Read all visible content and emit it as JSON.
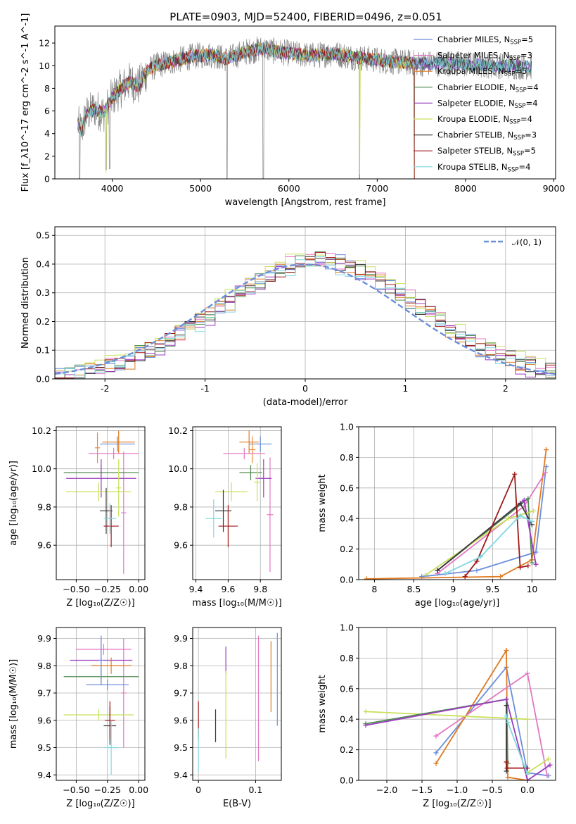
{
  "title": "PLATE=0903, MJD=52400, FIBERID=0496, z=0.051",
  "colors": [
    "#6a8fdb",
    "#ec8a38",
    "#e07a20",
    "#4f8a4f",
    "#9a3cbf",
    "#c8e05a",
    "#3a3a3a",
    "#a01818",
    "#7fd8e0"
  ],
  "chart_data": [
    {
      "type": "line",
      "name": "spectrum",
      "xlabel": "wavelength [Angstrom, rest frame]",
      "ylabel": "Flux [f_λ10^-17 erg cm^-2 s^-1 A^-1]",
      "xlim": [
        3350,
        9020
      ],
      "ylim": [
        0,
        13.5
      ],
      "xticks": [
        4000,
        5000,
        6000,
        7000,
        8000,
        9000
      ],
      "yticks": [
        0,
        2,
        4,
        6,
        8,
        10,
        12
      ],
      "legend_position": "right",
      "legend": [
        {
          "label": "Chabrier MILES, N",
          "sub": "SSP",
          "suffix": "=5",
          "color": "#6a8fdb"
        },
        {
          "label": "Salpeter MILES, N",
          "sub": "SSP",
          "suffix": "=3",
          "color": "#e377c2"
        },
        {
          "label": "Kroupa MILES, N",
          "sub": "SSP",
          "suffix": "=5",
          "color": "#e07a20"
        },
        {
          "label": "Chabrier ELODIE, N",
          "sub": "SSP",
          "suffix": "=4",
          "color": "#4f8a4f"
        },
        {
          "label": "Salpeter ELODIE, N",
          "sub": "SSP",
          "suffix": "=4",
          "color": "#9a3cbf"
        },
        {
          "label": "Kroupa ELODIE, N",
          "sub": "SSP",
          "suffix": "=4",
          "color": "#c8e05a"
        },
        {
          "label": "Chabrier STELIB, N",
          "sub": "SSP",
          "suffix": "=3",
          "color": "#3a3a3a"
        },
        {
          "label": "Salpeter STELIB, N",
          "sub": "SSP",
          "suffix": "=5",
          "color": "#a01818"
        },
        {
          "label": "Kroupa STELIB, N",
          "sub": "SSP",
          "suffix": "=4",
          "color": "#7fd8e0"
        }
      ],
      "continuum_points": [
        [
          3600,
          5.0
        ],
        [
          3650,
          4.2
        ],
        [
          3700,
          5.6
        ],
        [
          3800,
          6.2
        ],
        [
          3900,
          5.8
        ],
        [
          4000,
          7.2
        ],
        [
          4100,
          8.0
        ],
        [
          4200,
          8.6
        ],
        [
          4300,
          8.2
        ],
        [
          4400,
          9.6
        ],
        [
          4500,
          10.0
        ],
        [
          4700,
          10.4
        ],
        [
          4900,
          10.8
        ],
        [
          5100,
          11.0
        ],
        [
          5300,
          10.6
        ],
        [
          5500,
          11.2
        ],
        [
          5700,
          11.5
        ],
        [
          5900,
          11.2
        ],
        [
          6100,
          11.0
        ],
        [
          6300,
          10.9
        ],
        [
          6500,
          11.1
        ],
        [
          6700,
          10.8
        ],
        [
          6900,
          10.6
        ],
        [
          7100,
          10.4
        ],
        [
          7300,
          10.3
        ],
        [
          7500,
          10.2
        ],
        [
          7800,
          10.2
        ],
        [
          8100,
          10.1
        ],
        [
          8400,
          10.0
        ],
        [
          8750,
          9.9
        ]
      ],
      "absorption_lines": [
        [
          3630,
          0.0
        ],
        [
          3930,
          0.8
        ],
        [
          3970,
          0.9
        ],
        [
          5300,
          0.0
        ],
        [
          5710,
          0.0
        ],
        [
          6800,
          0.0
        ],
        [
          7420,
          0.0
        ]
      ]
    },
    {
      "type": "histogram",
      "name": "residuals",
      "xlabel": "(data-model)/error",
      "ylabel": "Normed distribution",
      "xlim": [
        -2.5,
        2.5
      ],
      "ylim": [
        0,
        0.53
      ],
      "xticks": [
        -2,
        -1,
        0,
        1,
        2
      ],
      "yticks": [
        0.0,
        0.1,
        0.2,
        0.3,
        0.4,
        0.5
      ],
      "legend": [
        {
          "label": "𝒩(0, 1)",
          "color": "#6a8fdb",
          "dashed": true
        }
      ],
      "bin_width": 0.1,
      "series": [
        {
          "color": "#6a8fdb",
          "offset": 0.0
        },
        {
          "color": "#e377c2",
          "offset": 0.03
        },
        {
          "color": "#e07a20",
          "offset": -0.02
        },
        {
          "color": "#4f8a4f",
          "offset": 0.02
        },
        {
          "color": "#9a3cbf",
          "offset": -0.03
        },
        {
          "color": "#c8e05a",
          "offset": 0.04
        },
        {
          "color": "#3a3a3a",
          "offset": -0.01
        },
        {
          "color": "#a01818",
          "offset": 0.01
        },
        {
          "color": "#7fd8e0",
          "offset": -0.04
        }
      ]
    },
    {
      "type": "scatter",
      "name": "age-vs-Z",
      "xlabel": "Z [log₁₀(Z/Z☉)]",
      "ylabel": "age  [log₁₀(age/yr)]",
      "xlim": [
        -0.66,
        0.05
      ],
      "ylim": [
        9.42,
        10.22
      ],
      "xticks": [
        -0.5,
        -0.25,
        0.0
      ],
      "xticklabels": [
        "−0.50",
        "−0.25",
        "0.00"
      ],
      "yticks": [
        9.6,
        9.8,
        10.0,
        10.2
      ],
      "points": [
        {
          "x": -0.17,
          "y": 10.13,
          "dx": 0.14,
          "dy": 0.04,
          "color": "#6a8fdb"
        },
        {
          "x": -0.16,
          "y": 10.14,
          "dx": 0.13,
          "dy": 0.06,
          "color": "#e07a20"
        },
        {
          "x": -0.33,
          "y": 10.11,
          "dx": 0.02,
          "dy": 0.08,
          "color": "#ec8a38"
        },
        {
          "x": -0.2,
          "y": 10.08,
          "dx": 0.2,
          "dy": 0.03,
          "color": "#e377c2"
        },
        {
          "x": -0.12,
          "y": 9.77,
          "dx": 0.02,
          "dy": 0.32,
          "color": "#e377c2"
        },
        {
          "x": -0.3,
          "y": 9.98,
          "dx": 0.3,
          "dy": 0.04,
          "color": "#4f8a4f"
        },
        {
          "x": -0.3,
          "y": 9.95,
          "dx": 0.28,
          "dy": 0.1,
          "color": "#9a3cbf"
        },
        {
          "x": -0.32,
          "y": 9.88,
          "dx": 0.26,
          "dy": 0.05,
          "color": "#c8e05a"
        },
        {
          "x": -0.16,
          "y": 9.9,
          "dx": 0.02,
          "dy": 0.15,
          "color": "#c8e05a"
        },
        {
          "x": -0.26,
          "y": 9.78,
          "dx": 0.05,
          "dy": 0.12,
          "color": "#3a3a3a"
        },
        {
          "x": -0.22,
          "y": 9.7,
          "dx": 0.06,
          "dy": 0.11,
          "color": "#a01818"
        },
        {
          "x": -0.23,
          "y": 9.74,
          "dx": 0.05,
          "dy": 0.08,
          "color": "#7fd8e0"
        }
      ]
    },
    {
      "type": "scatter",
      "name": "age-vs-mass",
      "xlabel": "mass [log₁₀(M/M☉)]",
      "ylabel": "",
      "xlim": [
        9.38,
        9.93
      ],
      "ylim": [
        9.42,
        10.22
      ],
      "xticks": [
        9.4,
        9.6,
        9.8
      ],
      "yticks": [
        9.6,
        9.8,
        10.0,
        10.2
      ],
      "points": [
        {
          "x": 9.8,
          "y": 10.13,
          "dx": 0.07,
          "dy": 0.04,
          "color": "#6a8fdb"
        },
        {
          "x": 9.73,
          "y": 10.14,
          "dx": 0.06,
          "dy": 0.06,
          "color": "#e07a20"
        },
        {
          "x": 9.75,
          "y": 10.1,
          "dx": 0.02,
          "dy": 0.07,
          "color": "#ec8a38"
        },
        {
          "x": 9.7,
          "y": 10.08,
          "dx": 0.13,
          "dy": 0.03,
          "color": "#e377c2"
        },
        {
          "x": 9.86,
          "y": 9.76,
          "dx": 0.02,
          "dy": 0.3,
          "color": "#e377c2"
        },
        {
          "x": 9.74,
          "y": 9.98,
          "dx": 0.07,
          "dy": 0.04,
          "color": "#4f8a4f"
        },
        {
          "x": 9.82,
          "y": 9.95,
          "dx": 0.05,
          "dy": 0.1,
          "color": "#9a3cbf"
        },
        {
          "x": 9.62,
          "y": 9.88,
          "dx": 0.1,
          "dy": 0.05,
          "color": "#c8e05a"
        },
        {
          "x": 9.78,
          "y": 9.93,
          "dx": 0.02,
          "dy": 0.1,
          "color": "#c8e05a"
        },
        {
          "x": 9.57,
          "y": 9.78,
          "dx": 0.05,
          "dy": 0.11,
          "color": "#3a3a3a"
        },
        {
          "x": 9.6,
          "y": 9.7,
          "dx": 0.06,
          "dy": 0.11,
          "color": "#a01818"
        },
        {
          "x": 9.51,
          "y": 9.74,
          "dx": 0.05,
          "dy": 0.1,
          "color": "#7fd8e0"
        }
      ]
    },
    {
      "type": "line",
      "name": "mass-weight-vs-age",
      "xlabel": "age  [log₁₀(age/yr)]",
      "ylabel": "mass weight",
      "xlim": [
        7.8,
        10.3
      ],
      "ylim": [
        0,
        1.0
      ],
      "xticks": [
        8.0,
        8.5,
        9.0,
        9.5,
        10.0
      ],
      "yticks": [
        0.0,
        0.2,
        0.4,
        0.6,
        0.8,
        1.0
      ],
      "series": [
        {
          "color": "#6a8fdb",
          "points": [
            [
              8.6,
              0.02
            ],
            [
              9.3,
              0.06
            ],
            [
              10.05,
              0.18
            ],
            [
              10.18,
              0.74
            ]
          ]
        },
        {
          "color": "#e07a20",
          "points": [
            [
              7.9,
              0.005
            ],
            [
              9.6,
              0.02
            ],
            [
              10.0,
              0.13
            ],
            [
              10.18,
              0.85
            ]
          ]
        },
        {
          "color": "#e377c2",
          "points": [
            [
              8.8,
              0.04
            ],
            [
              9.9,
              0.48
            ],
            [
              10.17,
              0.7
            ]
          ]
        },
        {
          "color": "#4f8a4f",
          "points": [
            [
              8.8,
              0.06
            ],
            [
              9.95,
              0.53
            ],
            [
              10.0,
              0.11
            ]
          ]
        },
        {
          "color": "#9a3cbf",
          "points": [
            [
              8.8,
              0.06
            ],
            [
              9.9,
              0.52
            ],
            [
              10.05,
              0.1
            ]
          ]
        },
        {
          "color": "#c8e05a",
          "points": [
            [
              8.65,
              0.03
            ],
            [
              9.7,
              0.4
            ],
            [
              10.02,
              0.45
            ]
          ]
        },
        {
          "color": "#3a3a3a",
          "points": [
            [
              8.8,
              0.06
            ],
            [
              9.85,
              0.5
            ],
            [
              10.0,
              0.36
            ]
          ]
        },
        {
          "color": "#a01818",
          "points": [
            [
              9.15,
              0.02
            ],
            [
              9.3,
              0.12
            ],
            [
              9.78,
              0.69
            ],
            [
              9.85,
              0.08
            ],
            [
              9.95,
              0.09
            ]
          ]
        },
        {
          "color": "#7fd8e0",
          "points": [
            [
              8.9,
              0.04
            ],
            [
              9.35,
              0.15
            ],
            [
              9.85,
              0.42
            ],
            [
              10.0,
              0.38
            ]
          ]
        }
      ]
    },
    {
      "type": "scatter",
      "name": "mass-vs-Z",
      "xlabel": "Z [log₁₀(Z/Z☉)]",
      "ylabel": "mass [log₁₀(M/M☉)]",
      "xlim": [
        -0.66,
        0.05
      ],
      "ylim": [
        9.38,
        9.94
      ],
      "xticks": [
        -0.5,
        -0.25,
        0.0
      ],
      "xticklabels": [
        "−0.50",
        "−0.25",
        "0.00"
      ],
      "yticks": [
        9.4,
        9.5,
        9.6,
        9.7,
        9.8,
        9.9
      ],
      "points": [
        {
          "x": -0.28,
          "y": 9.86,
          "dx": 0.22,
          "dy": 0.02,
          "color": "#e377c2"
        },
        {
          "x": -0.12,
          "y": 9.7,
          "dx": 0.02,
          "dy": 0.2,
          "color": "#e377c2"
        },
        {
          "x": -0.3,
          "y": 9.82,
          "dx": 0.25,
          "dy": 0.08,
          "color": "#9a3cbf"
        },
        {
          "x": -0.22,
          "y": 9.8,
          "dx": 0.16,
          "dy": 0.03,
          "color": "#e07a20"
        },
        {
          "x": -0.3,
          "y": 9.76,
          "dx": 0.3,
          "dy": 0.03,
          "color": "#4f8a4f"
        },
        {
          "x": -0.25,
          "y": 9.73,
          "dx": 0.17,
          "dy": 0.02,
          "color": "#6a8fdb"
        },
        {
          "x": -0.3,
          "y": 9.82,
          "dx": 0.02,
          "dy": 0.09,
          "color": "#6a8fdb"
        },
        {
          "x": -0.32,
          "y": 9.62,
          "dx": 0.28,
          "dy": 0.02,
          "color": "#c8e05a"
        },
        {
          "x": -0.23,
          "y": 9.58,
          "dx": 0.05,
          "dy": 0.07,
          "color": "#3a3a3a"
        },
        {
          "x": -0.23,
          "y": 9.6,
          "dx": 0.04,
          "dy": 0.07,
          "color": "#a01818"
        },
        {
          "x": -0.22,
          "y": 9.5,
          "dx": 0.06,
          "dy": 0.1,
          "color": "#7fd8e0"
        }
      ]
    },
    {
      "type": "scatter",
      "name": "mass-vs-ebv",
      "xlabel": "E(B-V)",
      "ylabel": "",
      "xlim": [
        -0.01,
        0.145
      ],
      "ylim": [
        9.38,
        9.94
      ],
      "xticks": [
        0.0,
        0.1
      ],
      "yticks": [
        9.4,
        9.5,
        9.6,
        9.7,
        9.8,
        9.9
      ],
      "points": [
        {
          "x": 0.0,
          "y": 9.6,
          "dx": 0,
          "dy": 0.07,
          "color": "#a01818"
        },
        {
          "x": 0.0,
          "y": 9.49,
          "dx": 0,
          "dy": 0.08,
          "color": "#7fd8e0"
        },
        {
          "x": 0.03,
          "y": 9.58,
          "dx": 0,
          "dy": 0.06,
          "color": "#3a3a3a"
        },
        {
          "x": 0.048,
          "y": 9.82,
          "dx": 0,
          "dy": 0.05,
          "color": "#9a3cbf"
        },
        {
          "x": 0.048,
          "y": 9.62,
          "dx": 0,
          "dy": 0.16,
          "color": "#c8e05a"
        },
        {
          "x": 0.105,
          "y": 9.68,
          "dx": 0,
          "dy": 0.23,
          "color": "#e377c2"
        },
        {
          "x": 0.127,
          "y": 9.76,
          "dx": 0,
          "dy": 0.13,
          "color": "#e07a20"
        },
        {
          "x": 0.138,
          "y": 9.75,
          "dx": 0,
          "dy": 0.17,
          "color": "#6a8fdb"
        }
      ]
    },
    {
      "type": "line",
      "name": "mass-weight-vs-Z",
      "xlabel": "Z [log₁₀(Z/Z☉)]",
      "ylabel": "mass weight",
      "xlim": [
        -2.4,
        0.4
      ],
      "ylim": [
        0,
        1.0
      ],
      "xticks": [
        -2.0,
        -1.5,
        -1.0,
        -0.5,
        0.0
      ],
      "xticklabels": [
        "−2.0",
        "−1.5",
        "−1.0",
        "−0.5",
        "0.0"
      ],
      "yticks": [
        0.0,
        0.2,
        0.4,
        0.6,
        0.8,
        1.0
      ],
      "series": [
        {
          "color": "#6a8fdb",
          "points": [
            [
              -1.3,
              0.18
            ],
            [
              -0.3,
              0.74
            ],
            [
              0.0,
              0.05
            ],
            [
              0.3,
              0.03
            ]
          ]
        },
        {
          "color": "#e07a20",
          "points": [
            [
              -1.3,
              0.11
            ],
            [
              -0.3,
              0.85
            ],
            [
              -0.28,
              0.02
            ],
            [
              0.0,
              0.0
            ]
          ]
        },
        {
          "color": "#e377c2",
          "points": [
            [
              -1.3,
              0.29
            ],
            [
              0.0,
              0.7
            ],
            [
              0.28,
              0.03
            ]
          ]
        },
        {
          "color": "#c8e05a",
          "points": [
            [
              -2.3,
              0.45
            ],
            [
              0.0,
              0.4
            ],
            [
              0.0,
              0.05
            ],
            [
              0.3,
              0.14
            ]
          ]
        },
        {
          "color": "#4f8a4f",
          "points": [
            [
              -2.3,
              0.37
            ],
            [
              -0.3,
              0.53
            ],
            [
              -0.28,
              0.11
            ]
          ]
        },
        {
          "color": "#9a3cbf",
          "points": [
            [
              -2.3,
              0.36
            ],
            [
              -0.3,
              0.53
            ],
            [
              0.0,
              0.0
            ],
            [
              0.32,
              0.1
            ]
          ]
        },
        {
          "color": "#3a3a3a",
          "points": [
            [
              -0.3,
              0.49
            ],
            [
              -0.3,
              0.06
            ]
          ]
        },
        {
          "color": "#a01818",
          "points": [
            [
              -0.3,
              0.12
            ],
            [
              -0.29,
              0.08
            ],
            [
              0.0,
              0.08
            ]
          ]
        },
        {
          "color": "#7fd8e0",
          "points": [
            [
              -0.3,
              0.42
            ],
            [
              -0.28,
              0.38
            ],
            [
              0.0,
              0.04
            ]
          ]
        }
      ]
    }
  ]
}
